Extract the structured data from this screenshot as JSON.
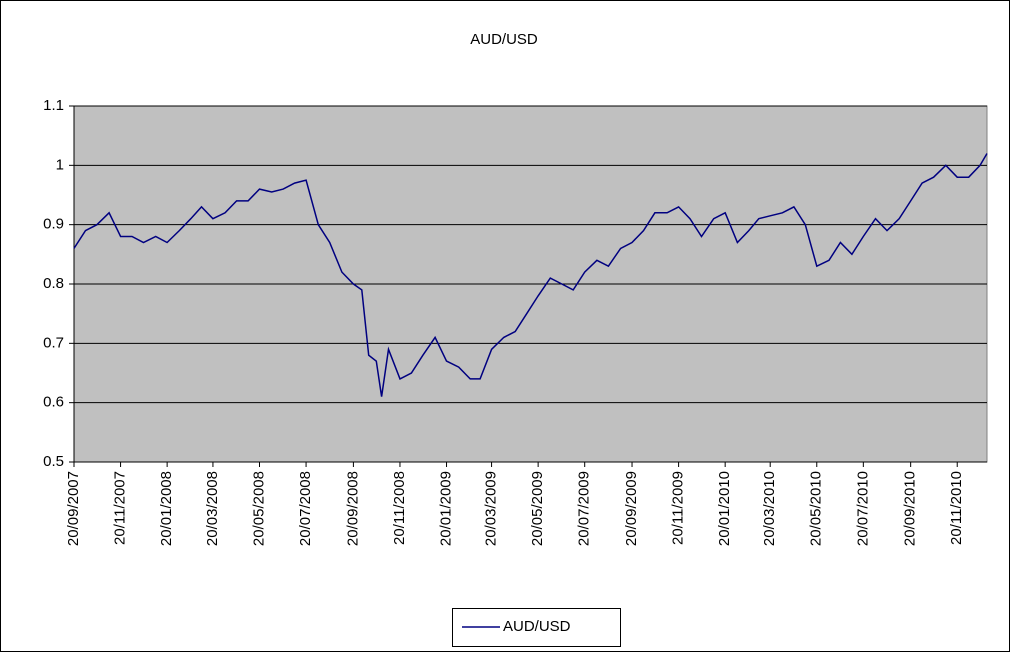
{
  "chart_data": {
    "type": "line",
    "title": "AUD/USD",
    "x": [
      "20/09/2007",
      "05/10/2007",
      "20/10/2007",
      "05/11/2007",
      "20/11/2007",
      "05/12/2007",
      "20/12/2007",
      "05/01/2008",
      "20/01/2008",
      "05/02/2008",
      "20/02/2008",
      "05/03/2008",
      "20/03/2008",
      "05/04/2008",
      "20/04/2008",
      "05/05/2008",
      "20/05/2008",
      "05/06/2008",
      "20/06/2008",
      "05/07/2008",
      "20/07/2008",
      "05/08/2008",
      "20/08/2008",
      "05/09/2008",
      "20/09/2008",
      "01/10/2008",
      "10/10/2008",
      "20/10/2008",
      "27/10/2008",
      "05/11/2008",
      "20/11/2008",
      "05/12/2008",
      "20/12/2008",
      "05/01/2009",
      "20/01/2009",
      "05/02/2009",
      "20/02/2009",
      "05/03/2009",
      "20/03/2009",
      "05/04/2009",
      "20/04/2009",
      "05/05/2009",
      "20/05/2009",
      "05/06/2009",
      "20/06/2009",
      "05/07/2009",
      "20/07/2009",
      "05/08/2009",
      "20/08/2009",
      "05/09/2009",
      "20/09/2009",
      "05/10/2009",
      "20/10/2009",
      "05/11/2009",
      "20/11/2009",
      "05/12/2009",
      "20/12/2009",
      "05/01/2010",
      "20/01/2010",
      "05/02/2010",
      "20/02/2010",
      "05/03/2010",
      "20/03/2010",
      "05/04/2010",
      "20/04/2010",
      "05/05/2010",
      "20/05/2010",
      "05/06/2010",
      "20/06/2010",
      "05/07/2010",
      "20/07/2010",
      "05/08/2010",
      "20/08/2010",
      "05/09/2010",
      "20/09/2010",
      "05/10/2010",
      "20/10/2010",
      "05/11/2010",
      "20/11/2010",
      "05/12/2010",
      "20/12/2010",
      "29/12/2010"
    ],
    "series": [
      {
        "name": "AUD/USD",
        "color": "#000080",
        "values": [
          0.86,
          0.89,
          0.9,
          0.92,
          0.88,
          0.88,
          0.87,
          0.88,
          0.87,
          0.89,
          0.91,
          0.93,
          0.91,
          0.92,
          0.94,
          0.94,
          0.96,
          0.955,
          0.96,
          0.97,
          0.975,
          0.9,
          0.87,
          0.82,
          0.8,
          0.79,
          0.68,
          0.67,
          0.61,
          0.69,
          0.64,
          0.65,
          0.68,
          0.71,
          0.67,
          0.66,
          0.64,
          0.64,
          0.69,
          0.71,
          0.72,
          0.75,
          0.78,
          0.81,
          0.8,
          0.79,
          0.82,
          0.84,
          0.83,
          0.86,
          0.87,
          0.89,
          0.92,
          0.92,
          0.93,
          0.91,
          0.88,
          0.91,
          0.92,
          0.87,
          0.89,
          0.91,
          0.915,
          0.92,
          0.93,
          0.9,
          0.83,
          0.84,
          0.87,
          0.85,
          0.88,
          0.91,
          0.89,
          0.91,
          0.94,
          0.97,
          0.98,
          1.0,
          0.98,
          0.98,
          1.0,
          1.02
        ]
      }
    ],
    "xlim": [
      "20/09/2007",
      "29/12/2010"
    ],
    "xticks": [
      "20/09/2007",
      "20/11/2007",
      "20/01/2008",
      "20/03/2008",
      "20/05/2008",
      "20/07/2008",
      "20/09/2008",
      "20/11/2008",
      "20/01/2009",
      "20/03/2009",
      "20/05/2009",
      "20/07/2009",
      "20/09/2009",
      "20/11/2009",
      "20/01/2010",
      "20/03/2010",
      "20/05/2010",
      "20/07/2010",
      "20/09/2010",
      "20/11/2010"
    ],
    "ylim": [
      0.5,
      1.1
    ],
    "yticks": [
      0.5,
      0.6,
      0.7,
      0.8,
      0.9,
      1,
      1.1
    ],
    "grid": true,
    "legend": "bottom"
  }
}
